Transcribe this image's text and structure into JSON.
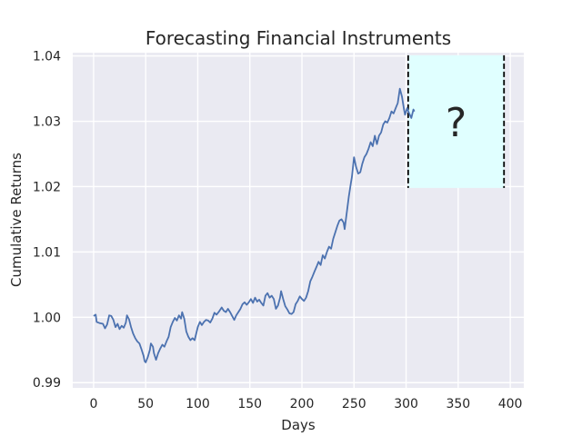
{
  "chart_data": {
    "type": "line",
    "title": "Forecasting Financial Instruments",
    "xlabel": "Days",
    "ylabel": "Cumulative Returns",
    "xlim": [
      -20,
      413
    ],
    "ylim": [
      0.9892,
      1.0405
    ],
    "x_ticks": [
      0,
      50,
      100,
      150,
      200,
      250,
      300,
      350,
      400
    ],
    "x_tick_labels": [
      "0",
      "50",
      "100",
      "150",
      "200",
      "250",
      "300",
      "350",
      "400"
    ],
    "y_ticks": [
      0.99,
      1.0,
      1.01,
      1.02,
      1.03,
      1.04
    ],
    "y_tick_labels": [
      "0.99",
      "1.00",
      "1.01",
      "1.02",
      "1.03",
      "1.04"
    ],
    "grid": true,
    "background": "#eaeaf2",
    "line_color": "#4c72b0",
    "forecast_region": {
      "x": [
        302,
        394
      ],
      "y": [
        1.0198,
        1.0401
      ],
      "fill": "#e0ffff",
      "label": "?"
    },
    "series": [
      {
        "points": [
          [
            0,
            1.0002
          ],
          [
            2,
            1.0004
          ],
          [
            3,
            0.9993
          ],
          [
            6,
            0.9991
          ],
          [
            9,
            0.999
          ],
          [
            11,
            0.9983
          ],
          [
            13,
            0.9989
          ],
          [
            15,
            1.0003
          ],
          [
            17,
            1.0002
          ],
          [
            19,
            0.9996
          ],
          [
            21,
            0.9985
          ],
          [
            23,
            0.999
          ],
          [
            25,
            0.9982
          ],
          [
            27,
            0.9987
          ],
          [
            29,
            0.9984
          ],
          [
            31,
            0.9992
          ],
          [
            32,
            1.0003
          ],
          [
            34,
            0.9997
          ],
          [
            36,
            0.9985
          ],
          [
            38,
            0.9975
          ],
          [
            40,
            0.9968
          ],
          [
            42,
            0.9963
          ],
          [
            44,
            0.996
          ],
          [
            46,
            0.9951
          ],
          [
            48,
            0.9941
          ],
          [
            49,
            0.9933
          ],
          [
            50,
            0.9931
          ],
          [
            52,
            0.9939
          ],
          [
            54,
            0.995
          ],
          [
            55,
            0.996
          ],
          [
            57,
            0.9955
          ],
          [
            58,
            0.9945
          ],
          [
            60,
            0.9935
          ],
          [
            62,
            0.9945
          ],
          [
            64,
            0.9952
          ],
          [
            66,
            0.9958
          ],
          [
            68,
            0.9955
          ],
          [
            70,
            0.9963
          ],
          [
            72,
            0.997
          ],
          [
            74,
            0.9985
          ],
          [
            76,
            0.9993
          ],
          [
            78,
            0.9999
          ],
          [
            80,
            0.9995
          ],
          [
            82,
            1.0003
          ],
          [
            84,
            0.9998
          ],
          [
            85,
            1.0008
          ],
          [
            87,
            0.9998
          ],
          [
            89,
            0.9978
          ],
          [
            91,
            0.997
          ],
          [
            93,
            0.9965
          ],
          [
            95,
            0.9968
          ],
          [
            97,
            0.9965
          ],
          [
            100,
            0.9985
          ],
          [
            102,
            0.9993
          ],
          [
            104,
            0.9988
          ],
          [
            106,
            0.9993
          ],
          [
            108,
            0.9996
          ],
          [
            110,
            0.9995
          ],
          [
            112,
            0.9992
          ],
          [
            114,
            0.9998
          ],
          [
            116,
            1.0007
          ],
          [
            118,
            1.0004
          ],
          [
            120,
            1.0008
          ],
          [
            123,
            1.0015
          ],
          [
            125,
            1.001
          ],
          [
            127,
            1.0008
          ],
          [
            129,
            1.0013
          ],
          [
            131,
            1.0008
          ],
          [
            133,
            1.0002
          ],
          [
            135,
            0.9996
          ],
          [
            137,
            1.0003
          ],
          [
            139,
            1.0008
          ],
          [
            141,
            1.0013
          ],
          [
            143,
            1.002
          ],
          [
            145,
            1.0023
          ],
          [
            147,
            1.0019
          ],
          [
            149,
            1.0023
          ],
          [
            151,
            1.0028
          ],
          [
            153,
            1.0022
          ],
          [
            155,
            1.003
          ],
          [
            157,
            1.0024
          ],
          [
            159,
            1.0027
          ],
          [
            161,
            1.0022
          ],
          [
            163,
            1.0018
          ],
          [
            165,
            1.0033
          ],
          [
            167,
            1.0037
          ],
          [
            169,
            1.003
          ],
          [
            171,
            1.0033
          ],
          [
            173,
            1.0028
          ],
          [
            175,
            1.0013
          ],
          [
            177,
            1.0018
          ],
          [
            179,
            1.003
          ],
          [
            180,
            1.004
          ],
          [
            182,
            1.0028
          ],
          [
            184,
            1.0017
          ],
          [
            186,
            1.0012
          ],
          [
            188,
            1.0006
          ],
          [
            190,
            1.0005
          ],
          [
            192,
            1.0008
          ],
          [
            194,
            1.002
          ],
          [
            196,
            1.0025
          ],
          [
            198,
            1.0032
          ],
          [
            200,
            1.0028
          ],
          [
            202,
            1.0025
          ],
          [
            204,
            1.003
          ],
          [
            206,
            1.004
          ],
          [
            208,
            1.0055
          ],
          [
            210,
            1.0062
          ],
          [
            212,
            1.007
          ],
          [
            214,
            1.0077
          ],
          [
            216,
            1.0085
          ],
          [
            218,
            1.008
          ],
          [
            220,
            1.0095
          ],
          [
            222,
            1.009
          ],
          [
            224,
            1.01
          ],
          [
            226,
            1.0108
          ],
          [
            228,
            1.0105
          ],
          [
            230,
            1.012
          ],
          [
            232,
            1.013
          ],
          [
            234,
            1.014
          ],
          [
            236,
            1.0148
          ],
          [
            238,
            1.015
          ],
          [
            240,
            1.0145
          ],
          [
            241,
            1.0135
          ],
          [
            243,
            1.016
          ],
          [
            245,
            1.0185
          ],
          [
            247,
            1.0205
          ],
          [
            248,
            1.0215
          ],
          [
            250,
            1.0245
          ],
          [
            252,
            1.023
          ],
          [
            254,
            1.022
          ],
          [
            256,
            1.0222
          ],
          [
            258,
            1.0235
          ],
          [
            260,
            1.0245
          ],
          [
            262,
            1.025
          ],
          [
            264,
            1.0258
          ],
          [
            266,
            1.0268
          ],
          [
            268,
            1.0262
          ],
          [
            270,
            1.0278
          ],
          [
            272,
            1.0265
          ],
          [
            274,
            1.0278
          ],
          [
            276,
            1.0283
          ],
          [
            278,
            1.0295
          ],
          [
            280,
            1.03
          ],
          [
            282,
            1.0298
          ],
          [
            284,
            1.0305
          ],
          [
            286,
            1.0315
          ],
          [
            288,
            1.0312
          ],
          [
            290,
            1.032
          ],
          [
            292,
            1.0328
          ],
          [
            294,
            1.035
          ],
          [
            296,
            1.0338
          ],
          [
            298,
            1.0318
          ],
          [
            299,
            1.031
          ],
          [
            301,
            1.032
          ],
          [
            303,
            1.0312
          ],
          [
            305,
            1.0305
          ],
          [
            307,
            1.0318
          ],
          [
            308,
            1.0315
          ]
        ]
      }
    ]
  }
}
